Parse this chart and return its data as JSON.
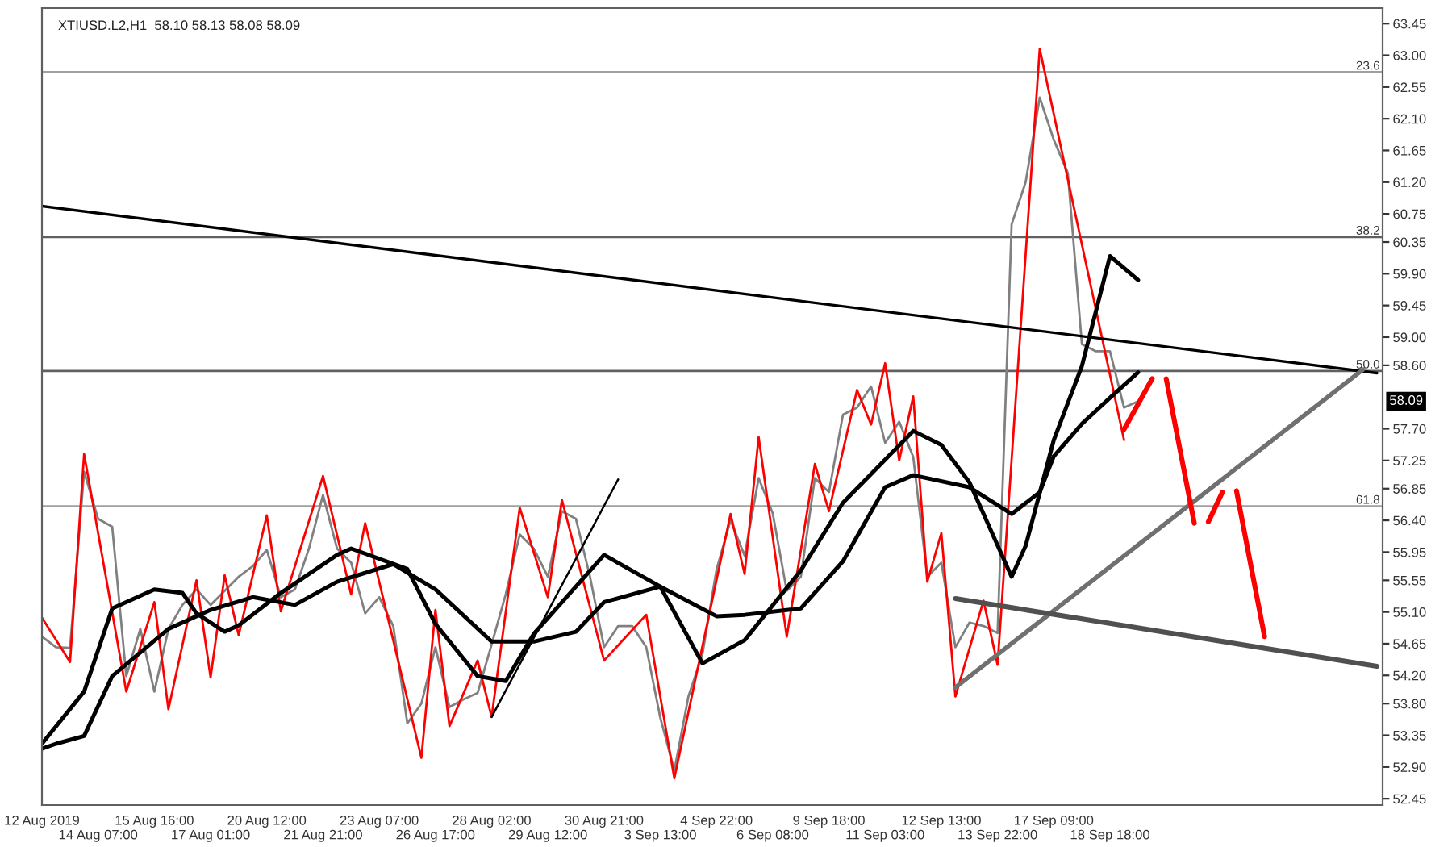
{
  "chart_data": {
    "type": "line",
    "title": "XTIUSD.L2,H1  58.10 58.13 58.08 58.09",
    "categories": [
      "12 Aug 2019",
      null,
      null,
      null,
      "14 Aug 07:00",
      null,
      null,
      null,
      "15 Aug 16:00",
      null,
      null,
      null,
      "17 Aug 01:00",
      null,
      null,
      null,
      "20 Aug 12:00",
      null,
      null,
      null,
      "21 Aug 21:00",
      null,
      null,
      null,
      "23 Aug 07:00",
      null,
      null,
      null,
      "26 Aug 17:00",
      null,
      null,
      null,
      "28 Aug 02:00",
      null,
      null,
      null,
      "29 Aug 12:00",
      null,
      null,
      null,
      "30 Aug 21:00",
      null,
      null,
      null,
      "3 Sep 13:00",
      null,
      null,
      null,
      "4 Sep 22:00",
      null,
      null,
      null,
      "6 Sep 08:00",
      null,
      null,
      null,
      "9 Sep 18:00",
      null,
      null,
      null,
      "11 Sep 03:00",
      null,
      null,
      null,
      "12 Sep 13:00",
      null,
      null,
      null,
      "13 Sep 22:00",
      null,
      null,
      null,
      "17 Sep 09:00",
      null,
      null,
      null,
      "18 Sep 18:00",
      null,
      null,
      null,
      null,
      null,
      null,
      null,
      null,
      null,
      null,
      null,
      null,
      null,
      null,
      null,
      null,
      null,
      null,
      null
    ],
    "ylim": [
      52.36,
      63.67
    ],
    "yticks": [
      {
        "value": 63.45,
        "label": "63.45"
      },
      {
        "value": 63,
        "label": "63.00"
      },
      {
        "value": 62.55,
        "label": "62.55"
      },
      {
        "value": 62.1,
        "label": "62.10"
      },
      {
        "value": 61.65,
        "label": "61.65"
      },
      {
        "value": 61.2,
        "label": "61.20"
      },
      {
        "value": 60.75,
        "label": "60.75"
      },
      {
        "value": 60.35,
        "label": "60.35"
      },
      {
        "value": 59.9,
        "label": "59.90"
      },
      {
        "value": 59.45,
        "label": "59.45"
      },
      {
        "value": 59,
        "label": "59.00"
      },
      {
        "value": 58.6,
        "label": "58.60"
      },
      {
        "value": 57.7,
        "label": "57.70"
      },
      {
        "value": 57.25,
        "label": "57.25"
      },
      {
        "value": 56.85,
        "label": "56.85"
      },
      {
        "value": 56.4,
        "label": "56.40"
      },
      {
        "value": 55.95,
        "label": "55.95"
      },
      {
        "value": 55.55,
        "label": "55.55"
      },
      {
        "value": 55.1,
        "label": "55.10"
      },
      {
        "value": 54.65,
        "label": "54.65"
      },
      {
        "value": 54.2,
        "label": "54.20"
      },
      {
        "value": 53.8,
        "label": "53.80"
      },
      {
        "value": 53.35,
        "label": "53.35"
      },
      {
        "value": 52.9,
        "label": "52.90"
      },
      {
        "value": 52.45,
        "label": "52.45"
      }
    ],
    "grid": false,
    "legend": false,
    "ref_lines": [
      {
        "axis": "y",
        "value": 62.76,
        "color": "#a0a0a0"
      },
      {
        "axis": "y",
        "value": 60.42,
        "color": "#606060"
      },
      {
        "axis": "y",
        "value": 58.52,
        "color": "#606060"
      },
      {
        "axis": "y",
        "value": 56.6,
        "color": "#a0a0a0"
      }
    ],
    "annotations": [
      {
        "text": "23.6",
        "y": 62.76
      },
      {
        "text": "38.2",
        "y": 60.42
      },
      {
        "text": "50.0",
        "y": 58.52
      },
      {
        "text": "61.8",
        "y": 56.6
      },
      "58.09"
    ],
    "series": [
      {
        "color": "#808080",
        "values": [
          54.75,
          54.6,
          54.59,
          57.09,
          56.42,
          56.31,
          54.19,
          54.86,
          53.97,
          54.86,
          55.2,
          55.42,
          55.2,
          55.4,
          55.6,
          55.75,
          55.98,
          55.31,
          55.42,
          56.0,
          56.76,
          56.0,
          55.8,
          55.08,
          55.31,
          54.9,
          53.52,
          53.8,
          54.6,
          53.75,
          53.86,
          53.95,
          54.64,
          55.35,
          56.2,
          56.0,
          55.6,
          56.53,
          56.42,
          55.6,
          54.6,
          54.9,
          54.9,
          54.6,
          53.6,
          52.85,
          53.9,
          54.5,
          55.7,
          56.4,
          55.9,
          57.0,
          56.5,
          55.4,
          55.6,
          57.0,
          56.8,
          57.9,
          58.0,
          58.3,
          57.5,
          57.8,
          57.3,
          55.6,
          55.8,
          54.6,
          54.95,
          54.9,
          54.8,
          60.6,
          61.2,
          62.4,
          61.8,
          61.33,
          58.9,
          58.8,
          58.8,
          58.0,
          58.09,
          null,
          null,
          null,
          null,
          null,
          null,
          null,
          null,
          null,
          null,
          null,
          null,
          null,
          null,
          null,
          null,
          null
        ]
      },
      {
        "color": "#ff0000",
        "values": [
          55.02,
          null,
          54.39,
          57.34,
          null,
          null,
          53.97,
          null,
          55.24,
          53.72,
          null,
          55.55,
          54.17,
          55.62,
          54.77,
          null,
          56.47,
          55.11,
          null,
          null,
          57.03,
          null,
          55.35,
          56.36,
          null,
          null,
          null,
          53.03,
          55.13,
          53.48,
          null,
          54.41,
          53.61,
          null,
          56.58,
          null,
          55.31,
          56.69,
          null,
          null,
          54.41,
          null,
          null,
          55.06,
          null,
          52.74,
          null,
          null,
          null,
          56.49,
          55.64,
          57.58,
          null,
          54.75,
          null,
          57.2,
          56.53,
          null,
          58.25,
          57.76,
          58.63,
          57.25,
          58.16,
          55.53,
          56.22,
          53.9,
          null,
          55.26,
          54.35,
          null,
          null,
          63.09,
          null,
          null,
          null,
          null,
          null,
          57.54,
          null,
          null,
          null,
          null,
          null,
          null,
          null,
          null,
          null,
          null,
          null,
          null,
          null,
          null,
          null,
          null,
          null,
          null
        ]
      },
      {
        "color": "#000000",
        "values": [
          53.23,
          null,
          null,
          53.97,
          null,
          55.15,
          null,
          null,
          55.42,
          null,
          55.37,
          55.08,
          null,
          54.82,
          54.91,
          null,
          null,
          55.37,
          null,
          null,
          null,
          55.91,
          56.0,
          null,
          null,
          null,
          55.71,
          null,
          54.93,
          null,
          null,
          54.19,
          null,
          54.12,
          null,
          54.79,
          null,
          null,
          null,
          null,
          55.91,
          null,
          null,
          null,
          55.46,
          null,
          null,
          54.37,
          null,
          null,
          54.7,
          null,
          null,
          null,
          55.69,
          null,
          null,
          56.65,
          null,
          null,
          null,
          null,
          57.67,
          null,
          57.47,
          null,
          56.94,
          null,
          null,
          55.6,
          56.04,
          null,
          57.54,
          null,
          58.59,
          null,
          60.15,
          null,
          59.81,
          null,
          null,
          null,
          null,
          null,
          null,
          null,
          null,
          null,
          null,
          null,
          null,
          null,
          null,
          null,
          null,
          null
        ]
      },
      {
        "color": "#000000",
        "values": [
          53.16,
          53.23,
          null,
          53.34,
          null,
          54.19,
          null,
          null,
          null,
          54.86,
          null,
          null,
          55.13,
          null,
          null,
          55.31,
          null,
          null,
          55.2,
          null,
          null,
          55.53,
          null,
          null,
          null,
          55.78,
          null,
          null,
          55.42,
          null,
          null,
          null,
          54.68,
          null,
          null,
          54.68,
          null,
          null,
          54.82,
          null,
          55.24,
          null,
          null,
          null,
          55.46,
          null,
          null,
          null,
          55.04,
          null,
          55.06,
          null,
          null,
          null,
          55.15,
          null,
          null,
          55.82,
          null,
          null,
          56.87,
          null,
          57.04,
          null,
          null,
          null,
          56.87,
          null,
          null,
          56.49,
          null,
          56.8,
          57.31,
          null,
          57.77,
          null,
          58.14,
          null,
          58.5,
          null,
          null,
          null,
          null,
          null,
          null,
          null,
          null,
          null,
          null,
          null,
          null,
          null,
          null,
          null,
          null,
          null
        ]
      },
      {
        "color": "#000000",
        "values": [
          60.86,
          null,
          null,
          null,
          null,
          null,
          null,
          null,
          null,
          null,
          null,
          null,
          null,
          null,
          null,
          null,
          null,
          null,
          null,
          null,
          null,
          null,
          null,
          null,
          null,
          null,
          null,
          null,
          null,
          null,
          null,
          null,
          null,
          null,
          null,
          null,
          null,
          null,
          null,
          null,
          null,
          null,
          null,
          null,
          null,
          null,
          null,
          null,
          null,
          null,
          null,
          null,
          null,
          null,
          null,
          null,
          null,
          null,
          null,
          null,
          null,
          null,
          null,
          null,
          null,
          null,
          null,
          null,
          null,
          null,
          null,
          null,
          null,
          null,
          null,
          null,
          null,
          null,
          null,
          null,
          null,
          null,
          null,
          null,
          null,
          null,
          null,
          null,
          null,
          null,
          null,
          null,
          null,
          null,
          null,
          58.49
        ]
      },
      {
        "color": "#000000",
        "values": [
          null,
          null,
          null,
          null,
          null,
          null,
          null,
          null,
          null,
          null,
          null,
          null,
          null,
          null,
          null,
          null,
          null,
          null,
          null,
          null,
          null,
          null,
          null,
          null,
          null,
          null,
          null,
          null,
          null,
          null,
          null,
          null,
          53.61,
          null,
          null,
          null,
          null,
          null,
          null,
          null,
          null,
          56.98,
          null,
          null,
          null,
          null,
          null,
          null,
          null,
          null,
          null,
          null,
          null,
          null,
          null,
          null,
          null,
          null,
          null,
          null,
          null,
          null,
          null,
          null,
          null,
          null,
          null,
          null,
          null,
          null,
          null,
          null,
          null,
          null,
          null,
          null,
          null,
          null,
          null,
          null,
          null,
          null,
          null,
          null,
          null,
          null,
          null,
          null,
          null,
          null,
          null,
          null,
          null,
          null,
          null,
          null
        ]
      },
      {
        "color": "#707070",
        "values": [
          null,
          null,
          null,
          null,
          null,
          null,
          null,
          null,
          null,
          null,
          null,
          null,
          null,
          null,
          null,
          null,
          null,
          null,
          null,
          null,
          null,
          null,
          null,
          null,
          null,
          null,
          null,
          null,
          null,
          null,
          null,
          null,
          null,
          null,
          null,
          null,
          null,
          null,
          null,
          null,
          null,
          null,
          null,
          null,
          null,
          null,
          null,
          null,
          null,
          null,
          null,
          null,
          null,
          null,
          null,
          null,
          null,
          null,
          null,
          null,
          null,
          null,
          null,
          null,
          null,
          54.03,
          null,
          null,
          null,
          null,
          null,
          null,
          null,
          null,
          null,
          null,
          null,
          null,
          null,
          null,
          null,
          null,
          null,
          null,
          null,
          null,
          null,
          null,
          null,
          null,
          null,
          null,
          null,
          null,
          58.54,
          null
        ]
      },
      {
        "color": "#505050",
        "values": [
          null,
          null,
          null,
          null,
          null,
          null,
          null,
          null,
          null,
          null,
          null,
          null,
          null,
          null,
          null,
          null,
          null,
          null,
          null,
          null,
          null,
          null,
          null,
          null,
          null,
          null,
          null,
          null,
          null,
          null,
          null,
          null,
          null,
          null,
          null,
          null,
          null,
          null,
          null,
          null,
          null,
          null,
          null,
          null,
          null,
          null,
          null,
          null,
          null,
          null,
          null,
          null,
          null,
          null,
          null,
          null,
          null,
          null,
          null,
          null,
          null,
          null,
          null,
          null,
          null,
          55.29,
          null,
          null,
          null,
          null,
          null,
          null,
          null,
          null,
          null,
          null,
          null,
          null,
          null,
          null,
          null,
          null,
          null,
          null,
          null,
          null,
          null,
          null,
          null,
          null,
          null,
          null,
          null,
          null,
          null,
          54.33
        ]
      },
      {
        "color": "#ff0000",
        "values": [
          null,
          null,
          null,
          null,
          null,
          null,
          null,
          null,
          null,
          null,
          null,
          null,
          null,
          null,
          null,
          null,
          null,
          null,
          null,
          null,
          null,
          null,
          null,
          null,
          null,
          null,
          null,
          null,
          null,
          null,
          null,
          null,
          null,
          null,
          null,
          null,
          null,
          null,
          null,
          null,
          null,
          null,
          null,
          null,
          null,
          null,
          null,
          null,
          null,
          null,
          null,
          null,
          null,
          null,
          null,
          null,
          null,
          null,
          null,
          null,
          null,
          null,
          null,
          null,
          null,
          null,
          null,
          null,
          null,
          null,
          null,
          null,
          null,
          null,
          null,
          null,
          null,
          57.69,
          null,
          58.41,
          null,
          null,
          null,
          null,
          null,
          null,
          null,
          null,
          null,
          null,
          null,
          null,
          null,
          null,
          null,
          null
        ]
      },
      {
        "color": "#ff0000",
        "values": [
          null,
          null,
          null,
          null,
          null,
          null,
          null,
          null,
          null,
          null,
          null,
          null,
          null,
          null,
          null,
          null,
          null,
          null,
          null,
          null,
          null,
          null,
          null,
          null,
          null,
          null,
          null,
          null,
          null,
          null,
          null,
          null,
          null,
          null,
          null,
          null,
          null,
          null,
          null,
          null,
          null,
          null,
          null,
          null,
          null,
          null,
          null,
          null,
          null,
          null,
          null,
          null,
          null,
          null,
          null,
          null,
          null,
          null,
          null,
          null,
          null,
          null,
          null,
          null,
          null,
          null,
          null,
          null,
          null,
          null,
          null,
          null,
          null,
          null,
          null,
          null,
          null,
          null,
          null,
          null,
          58.41,
          null,
          56.36,
          null,
          null,
          null,
          null,
          null,
          null,
          null,
          null,
          null,
          null,
          null,
          null,
          null
        ]
      },
      {
        "color": "#ff0000",
        "values": [
          null,
          null,
          null,
          null,
          null,
          null,
          null,
          null,
          null,
          null,
          null,
          null,
          null,
          null,
          null,
          null,
          null,
          null,
          null,
          null,
          null,
          null,
          null,
          null,
          null,
          null,
          null,
          null,
          null,
          null,
          null,
          null,
          null,
          null,
          null,
          null,
          null,
          null,
          null,
          null,
          null,
          null,
          null,
          null,
          null,
          null,
          null,
          null,
          null,
          null,
          null,
          null,
          null,
          null,
          null,
          null,
          null,
          null,
          null,
          null,
          null,
          null,
          null,
          null,
          null,
          null,
          null,
          null,
          null,
          null,
          null,
          null,
          null,
          null,
          null,
          null,
          null,
          null,
          null,
          null,
          null,
          null,
          null,
          56.38,
          56.8,
          null,
          null,
          null,
          null,
          null,
          null,
          null,
          null,
          null,
          null,
          null
        ]
      },
      {
        "color": "#ff0000",
        "values": [
          null,
          null,
          null,
          null,
          null,
          null,
          null,
          null,
          null,
          null,
          null,
          null,
          null,
          null,
          null,
          null,
          null,
          null,
          null,
          null,
          null,
          null,
          null,
          null,
          null,
          null,
          null,
          null,
          null,
          null,
          null,
          null,
          null,
          null,
          null,
          null,
          null,
          null,
          null,
          null,
          null,
          null,
          null,
          null,
          null,
          null,
          null,
          null,
          null,
          null,
          null,
          null,
          null,
          null,
          null,
          null,
          null,
          null,
          null,
          null,
          null,
          null,
          null,
          null,
          null,
          null,
          null,
          null,
          null,
          null,
          null,
          null,
          null,
          null,
          null,
          null,
          null,
          null,
          null,
          null,
          null,
          null,
          null,
          null,
          null,
          56.82,
          null,
          54.75,
          null,
          null,
          null,
          null,
          null,
          null,
          null,
          null
        ]
      }
    ]
  }
}
